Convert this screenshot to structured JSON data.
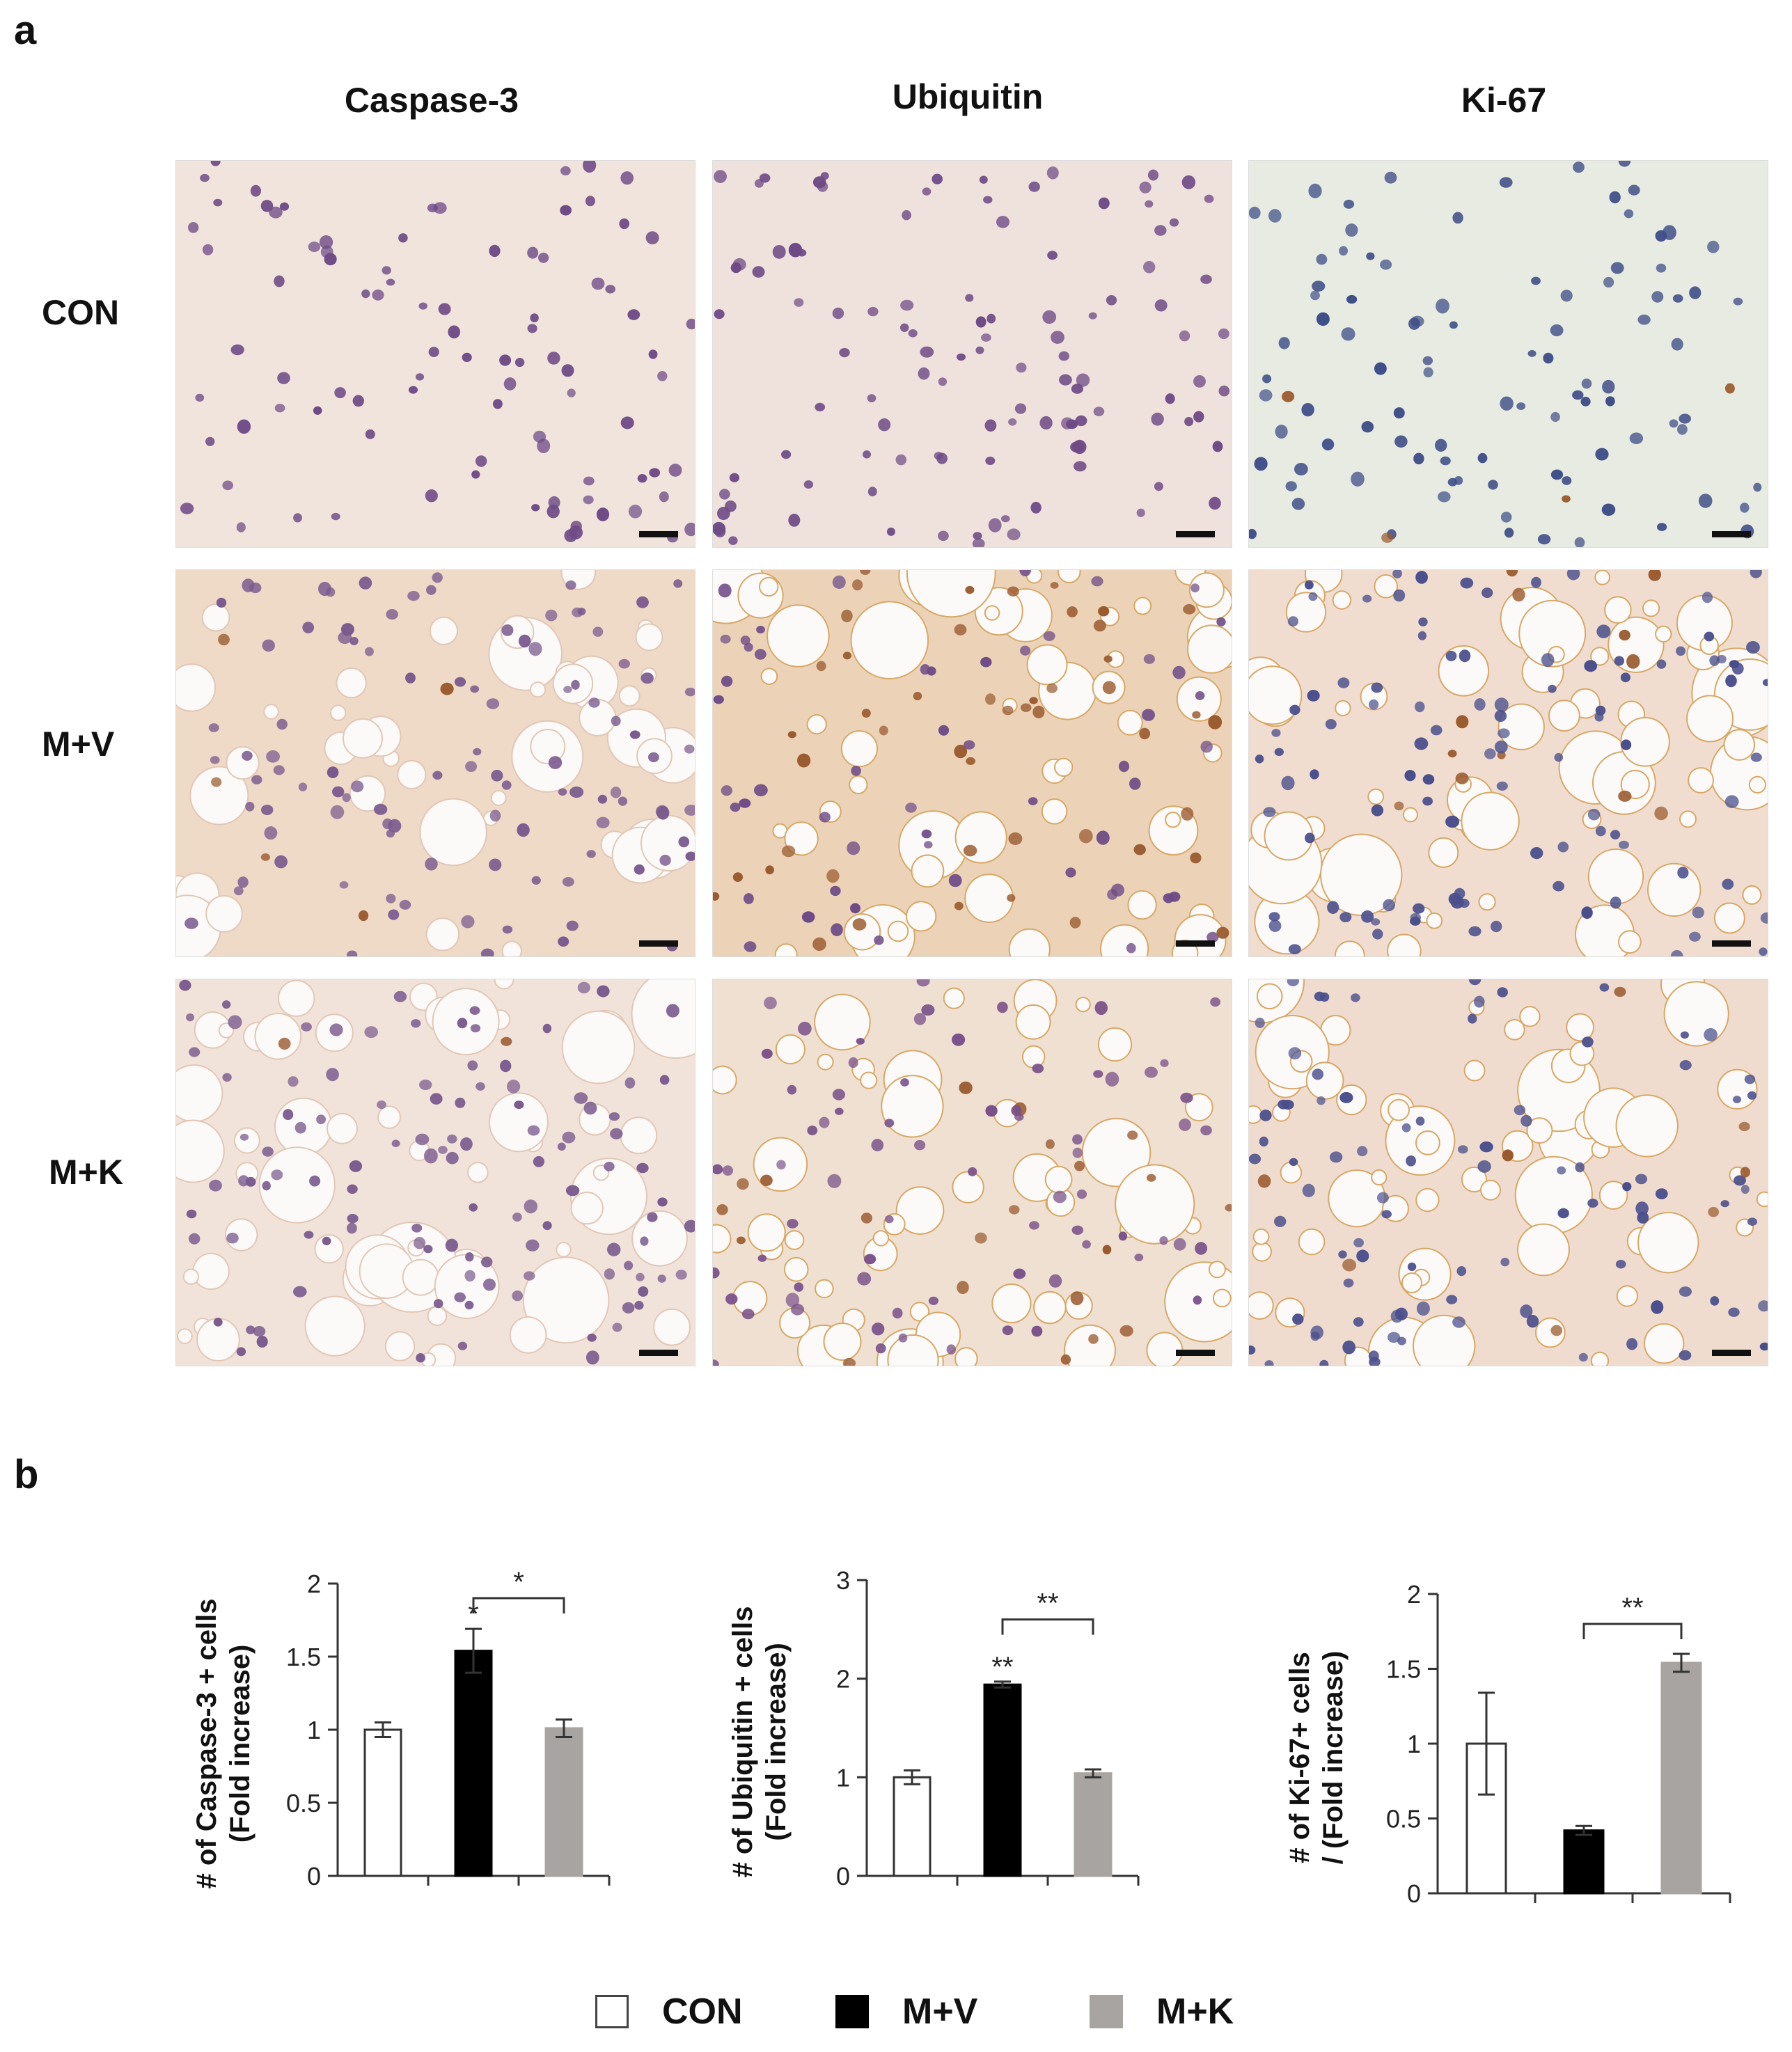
{
  "panel_a": {
    "letter": "a",
    "columns": [
      "Caspase-3",
      "Ubiquitin",
      "Ki-67"
    ],
    "rows": [
      "CON",
      "M+V",
      "M+K"
    ]
  },
  "panel_b": {
    "letter": "b"
  },
  "legend": [
    {
      "label": "CON",
      "color": "#ffffff"
    },
    {
      "label": "M+V",
      "color": "#000000"
    },
    {
      "label": "M+K",
      "color": "#a8a4a2"
    }
  ],
  "chart_data": [
    {
      "type": "bar",
      "categories": [
        "CON",
        "M+V",
        "M+K"
      ],
      "values": [
        1.0,
        1.54,
        1.01
      ],
      "errors": [
        0.05,
        0.15,
        0.06
      ],
      "colors": [
        "#ffffff",
        "#000000",
        "#a8a4a2"
      ],
      "ylabel": [
        "# of Caspase-3 + cells",
        "(Fold increase)"
      ],
      "ylim": [
        0,
        2
      ],
      "yticks": [
        0,
        0.5,
        1,
        1.5,
        2
      ],
      "ytick_labels": [
        "0",
        "0.5",
        "1",
        "1.5",
        "2"
      ],
      "bar_annotations": [
        null,
        "*",
        null
      ],
      "bracket": {
        "from": 1,
        "to": 2,
        "label": "*",
        "at": 1.9
      }
    },
    {
      "type": "bar",
      "categories": [
        "CON",
        "M+V",
        "M+K"
      ],
      "values": [
        1.0,
        1.94,
        1.04
      ],
      "errors": [
        0.07,
        0.03,
        0.04
      ],
      "colors": [
        "#ffffff",
        "#000000",
        "#a8a4a2"
      ],
      "ylabel": [
        "# of Ubiquitin + cells",
        "(Fold increase)"
      ],
      "ylim": [
        0,
        3
      ],
      "yticks": [
        0,
        1,
        2,
        3
      ],
      "ytick_labels": [
        "0",
        "1",
        "2",
        "3"
      ],
      "bar_annotations": [
        null,
        "**",
        null
      ],
      "bracket": {
        "from": 1,
        "to": 2,
        "label": "**",
        "at": 2.6
      }
    },
    {
      "type": "bar",
      "categories": [
        "CON",
        "M+V",
        "M+K"
      ],
      "values": [
        1.0,
        0.42,
        1.54
      ],
      "errors": [
        0.34,
        0.03,
        0.06
      ],
      "colors": [
        "#ffffff",
        "#000000",
        "#a8a4a2"
      ],
      "ylabel": [
        "# of Ki-67+ cells",
        "/ (Fold increase)"
      ],
      "ylim": [
        0,
        2
      ],
      "yticks": [
        0,
        0.5,
        1,
        1.5,
        2
      ],
      "ytick_labels": [
        "0",
        "0.5",
        "1",
        "1.5",
        "2"
      ],
      "bar_annotations": [
        null,
        null,
        null
      ],
      "bracket": {
        "from": 1,
        "to": 2,
        "label": "**",
        "at": 1.8
      }
    }
  ]
}
